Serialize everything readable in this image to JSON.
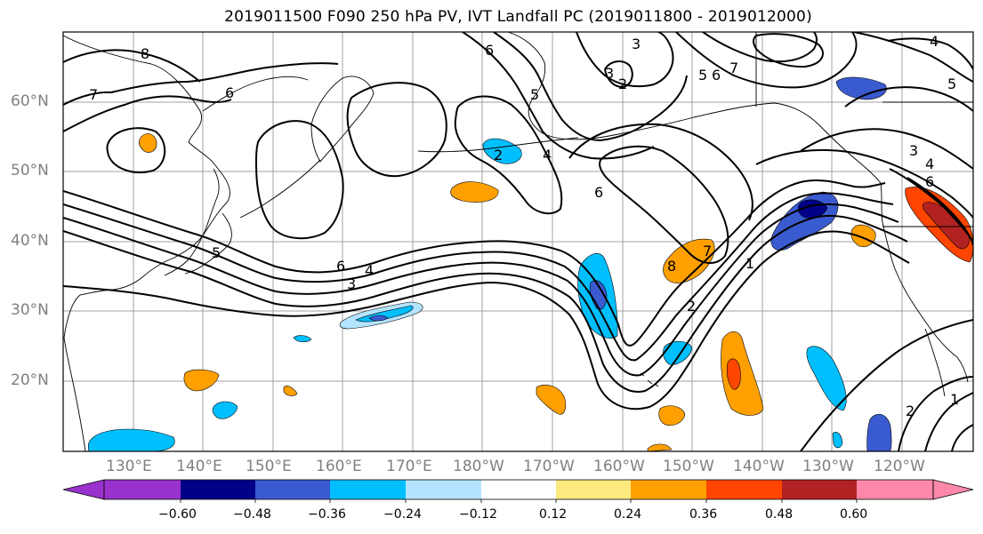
{
  "title": "2019011500 F090 250 hPa PV, IVT Landfall PC (2019011800 - 2019012000)",
  "map": {
    "lat_labels": [
      "60°N",
      "50°N",
      "40°N",
      "30°N",
      "20°N"
    ],
    "lon_labels": [
      "130°E",
      "140°E",
      "150°E",
      "160°E",
      "170°E",
      "180°W",
      "170°W",
      "160°W",
      "150°W",
      "140°W",
      "130°W",
      "120°W"
    ],
    "contour_labels": [
      "8",
      "7",
      "6",
      "6",
      "5",
      "4",
      "3",
      "6",
      "6",
      "5",
      "4",
      "3",
      "2",
      "1",
      "2",
      "1",
      "7",
      "8",
      "3",
      "2",
      "5",
      "7",
      "6",
      "5",
      "4",
      "3",
      "2",
      "4",
      "6"
    ],
    "shading_colors": {
      "pos_light": "#ffea80",
      "pos_mid": "#ffa000",
      "pos_strong": "#ff4500",
      "pos_max": "#b22222",
      "neg_light": "#b4e4ff",
      "neg_mid": "#00bfff",
      "neg_strong": "#3a5bd0",
      "neg_max": "#000088"
    }
  },
  "colorbar": {
    "ticks": [
      "−0.60",
      "−0.48",
      "−0.36",
      "−0.24",
      "−0.12",
      "0.12",
      "0.24",
      "0.36",
      "0.48",
      "0.60"
    ],
    "colors": [
      "#9932cc",
      "#000088",
      "#3a5bd0",
      "#00bfff",
      "#b4e4ff",
      "#ffffff",
      "#ffea80",
      "#ffa000",
      "#ff4500",
      "#b22222",
      "#ff88aa"
    ]
  }
}
